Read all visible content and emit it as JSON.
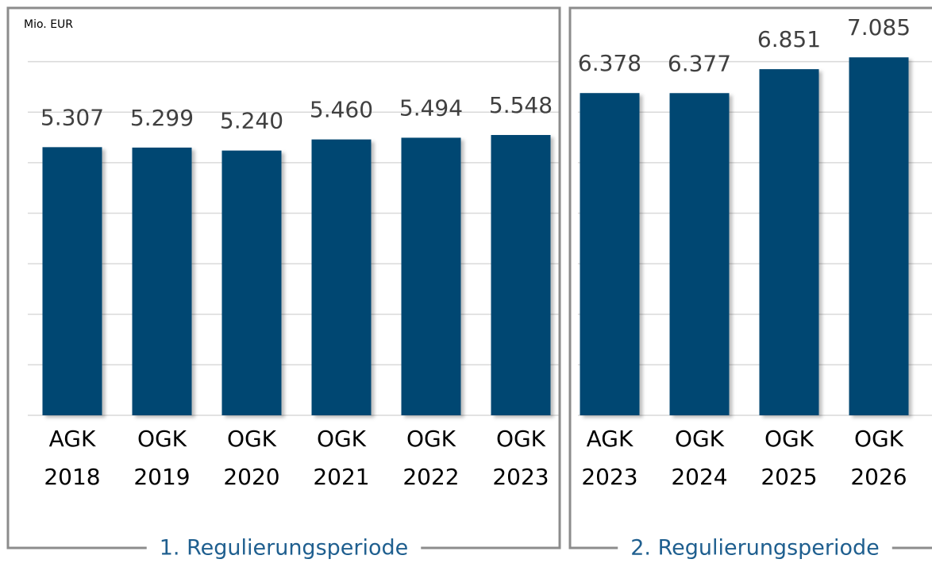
{
  "chart_data": [
    {
      "type": "bar",
      "ylabel": "Mio. EUR",
      "label": "1. Regulierungsperiode",
      "categories": [
        [
          "AGK",
          "2018"
        ],
        [
          "OGK",
          "2019"
        ],
        [
          "OGK",
          "2020"
        ],
        [
          "OGK",
          "2021"
        ],
        [
          "OGK",
          "2022"
        ],
        [
          "OGK",
          "2023"
        ]
      ],
      "values": [
        5307,
        5299,
        5240,
        5460,
        5494,
        5548
      ],
      "value_labels": [
        "5.307",
        "5.299",
        "5.240",
        "5.460",
        "5.494",
        "5.548"
      ],
      "color": "#004672",
      "ylim": [
        0,
        8000
      ],
      "yticks": [
        0,
        1000,
        2000,
        3000,
        4000,
        5000,
        6000,
        7000
      ],
      "grid": true
    },
    {
      "type": "bar",
      "label": "2. Regulierungsperiode",
      "categories": [
        [
          "AGK",
          "2023"
        ],
        [
          "OGK",
          "2024"
        ],
        [
          "OGK",
          "2025"
        ],
        [
          "OGK",
          "2026"
        ]
      ],
      "values": [
        6378,
        6377,
        6851,
        7085
      ],
      "value_labels": [
        "6.378",
        "6.377",
        "6.851",
        "7.085"
      ],
      "color": "#004672",
      "ylim": [
        0,
        8000
      ],
      "yticks": [
        0,
        1000,
        2000,
        3000,
        4000,
        5000,
        6000,
        7000
      ],
      "grid": true
    }
  ]
}
